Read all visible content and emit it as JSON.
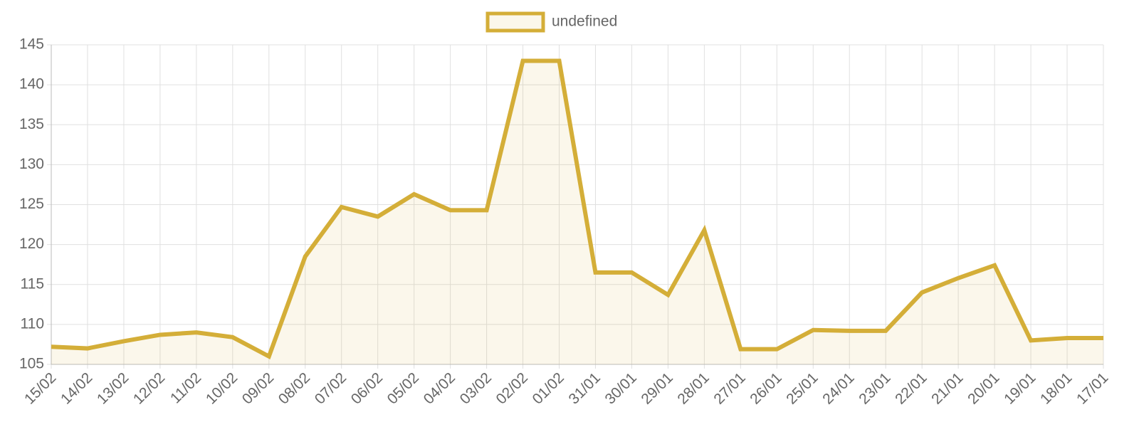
{
  "chart_data": {
    "type": "line",
    "categories": [
      "15/02",
      "14/02",
      "13/02",
      "12/02",
      "11/02",
      "10/02",
      "09/02",
      "08/02",
      "07/02",
      "06/02",
      "05/02",
      "04/02",
      "03/02",
      "02/02",
      "01/02",
      "31/01",
      "30/01",
      "29/01",
      "28/01",
      "27/01",
      "26/01",
      "25/01",
      "24/01",
      "23/01",
      "22/01",
      "21/01",
      "20/01",
      "19/01",
      "18/01",
      "17/01"
    ],
    "series": [
      {
        "name": "undefined",
        "color": "#d4ae38",
        "values": [
          107.2,
          107.0,
          107.9,
          108.7,
          109.0,
          108.4,
          106.0,
          118.5,
          124.7,
          123.5,
          126.3,
          124.3,
          124.3,
          143,
          143,
          116.5,
          116.5,
          113.7,
          121.8,
          106.9,
          106.9,
          109.3,
          109.2,
          109.2,
          114.0,
          115.8,
          117.4,
          108.0,
          108.3,
          108.3
        ]
      }
    ],
    "ylim": [
      105,
      145
    ],
    "yticks": [
      105,
      110,
      115,
      120,
      125,
      130,
      135,
      140,
      145
    ],
    "grid": true,
    "fill": true,
    "legend": "top"
  }
}
